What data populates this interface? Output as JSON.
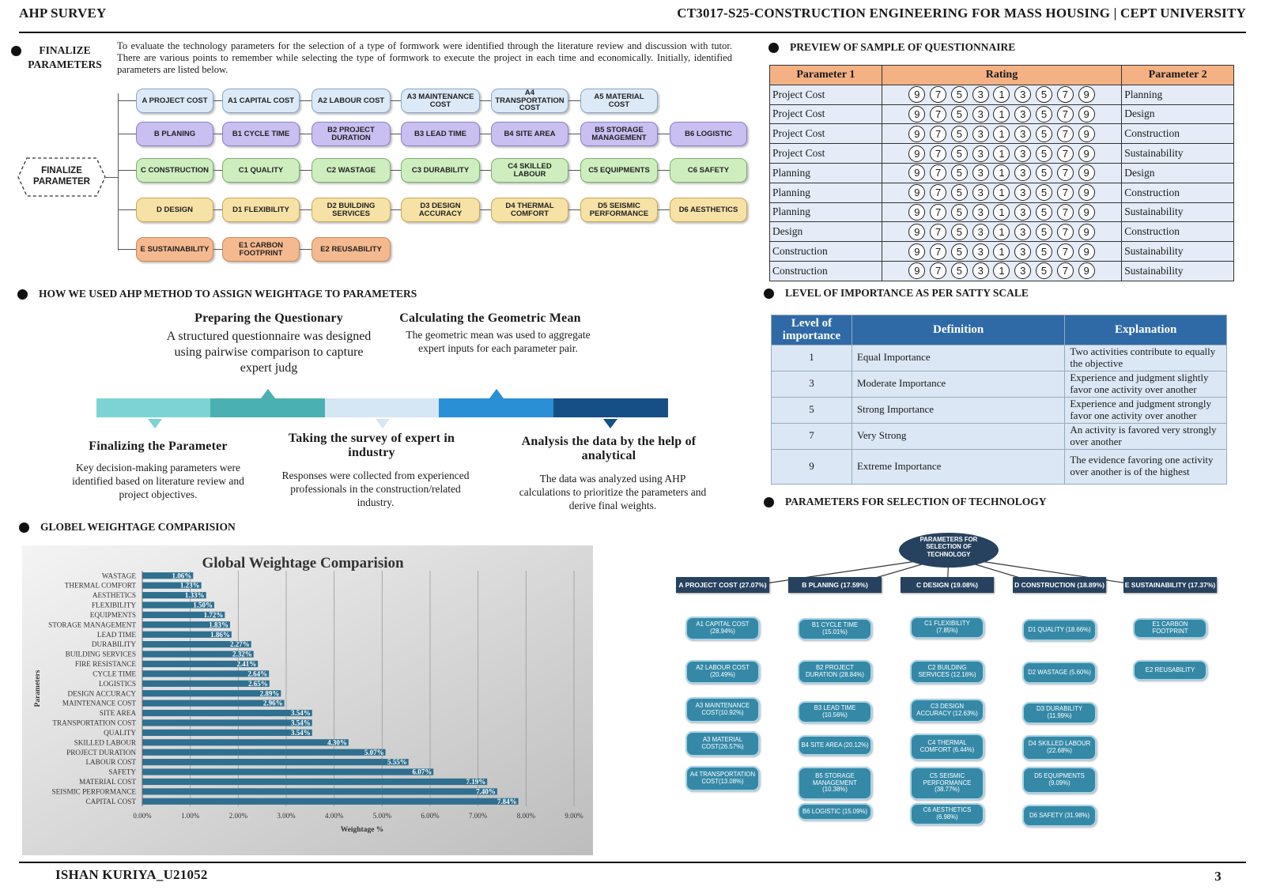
{
  "header": {
    "left": "AHP SURVEY",
    "right": "CT3017-S25-CONSTRUCTION ENGINEERING FOR MASS HOUSING | CEPT UNIVERSITY"
  },
  "footer": {
    "left": "ISHAN KURIYA_U21052",
    "right": "3"
  },
  "finalize": {
    "heading_line1": "FINALIZE",
    "heading_line2": "PARAMETERS",
    "intro": "To evaluate the technology parameters for the selection of a type of formwork were identified through the literature review and discussion with tutor. There are various points to remember while selecting the type of formwork to execute the project in each time and economically. Initially, identified parameters are listed below.",
    "root_line1": "FINALIZE",
    "root_line2": "PARAMETER",
    "rows": [
      {
        "cls": "cA",
        "items": [
          "A PROJECT COST",
          "A1 CAPITAL COST",
          "A2 LABOUR COST",
          "A3 MAINTENANCE COST",
          "A4 TRANSPORTATION COST",
          "A5 MATERIAL COST"
        ]
      },
      {
        "cls": "cB",
        "items": [
          "B PLANING",
          "B1 CYCLE TIME",
          "B2 PROJECT DURATION",
          "B3 LEAD TIME",
          "B4 SITE AREA",
          "B5 STORAGE MANAGEMENT",
          "B6 LOGISTIC"
        ]
      },
      {
        "cls": "cC",
        "items": [
          "C CONSTRUCTION",
          "C1 QUALITY",
          "C2 WASTAGE",
          "C3 DURABILITY",
          "C4 SKILLED LABOUR",
          "C5 EQUIPMENTS",
          "C6 SAFETY"
        ]
      },
      {
        "cls": "cD",
        "items": [
          "D DESIGN",
          "D1 FLEXIBILITY",
          "D2 BUILDING SERVICES",
          "D3 DESIGN ACCURACY",
          "D4 THERMAL COMFORT",
          "D5 SEISMIC PERFORMANCE",
          "D6 AESTHETICS"
        ]
      },
      {
        "cls": "cE",
        "items": [
          "E SUSTAINABILITY",
          "E1 CARBON FOOTPRINT",
          "E2 REUSABILITY"
        ]
      }
    ]
  },
  "questionnaire": {
    "heading": "PREVIEW OF SAMPLE OF QUESTIONNAIRE",
    "col1": "Parameter 1",
    "col2": "Rating",
    "col3": "Parameter 2",
    "scale": [
      "9",
      "7",
      "5",
      "3",
      "1",
      "3",
      "5",
      "7",
      "9"
    ],
    "rows": [
      [
        "Project Cost",
        "Planning"
      ],
      [
        "Project Cost",
        "Design"
      ],
      [
        "Project Cost",
        "Construction"
      ],
      [
        "Project Cost",
        "Sustainability"
      ],
      [
        "Planning",
        "Design"
      ],
      [
        "Planning",
        "Construction"
      ],
      [
        "Planning",
        "Sustainability"
      ],
      [
        "Design",
        "Construction"
      ],
      [
        "Construction",
        "Sustainability"
      ],
      [
        "Construction",
        "Sustainability"
      ]
    ]
  },
  "ahp": {
    "heading": "HOW WE USED AHP METHOD TO ASSIGN WEIGHTAGE TO PARAMETERS",
    "steps": [
      {
        "title": "Preparing the Questionary",
        "text": "A structured questionnaire was designed using pairwise comparison to capture expert judg"
      },
      {
        "title": "Calculating the Geometric Mean",
        "text": "The geometric mean was used to aggregate expert inputs for each parameter pair."
      },
      {
        "title": "Finalizing the Parameter",
        "text": "Key decision-making parameters were identified based on literature review and project objectives."
      },
      {
        "title": "Taking the survey of expert in industry",
        "text": "Responses were collected from experienced professionals in the construction/related industry."
      },
      {
        "title": "Analysis the data by the help of analytical",
        "text": "The data was analyzed using AHP calculations to prioritize the parameters and derive final weights."
      }
    ],
    "colors": [
      "#7dd3d3",
      "#4bb0b2",
      "#d5e6f5",
      "#2b8fd6",
      "#164f86"
    ]
  },
  "satty": {
    "heading": "LEVEL OF IMPORTANCE AS PER SATTY SCALE",
    "col1": "Level of importance",
    "col2": "Definition",
    "col3": "Explanation",
    "rows": [
      [
        "1",
        "Equal Importance",
        "Two activities contribute to equally the objective"
      ],
      [
        "3",
        "Moderate Importance",
        "Experience and judgment slightly favor one activity over another"
      ],
      [
        "5",
        "Strong Importance",
        "Experience and judgment strongly favor one activity over another"
      ],
      [
        "7",
        "Very Strong",
        "An activity is favored very strongly over another"
      ],
      [
        "9",
        "Extreme Importance",
        "The evidence favoring one activity over another is of the highest"
      ]
    ]
  },
  "global": {
    "heading": "GLOBEL WEIGHTAGE COMPARISION"
  },
  "chart_data": {
    "type": "bar",
    "orientation": "horizontal",
    "title": "Global Weightage Comparision",
    "xlabel": "Weightage %",
    "ylabel": "Parameters",
    "xlim": [
      0,
      9
    ],
    "xticks": [
      "0.00%",
      "1.00%",
      "2.00%",
      "3.00%",
      "4.00%",
      "5.00%",
      "6.00%",
      "7.00%",
      "8.00%",
      "9.00%"
    ],
    "bar_color": "#2f6f8f",
    "categories": [
      "WASTAGE",
      "THERMAL COMFORT",
      "AESTHETICS",
      "FLEXIBILITY",
      "EQUIPMENTS",
      "STORAGE MANAGEMENT",
      "LEAD TIME",
      "DURABILITY",
      "BUILDING SERVICES",
      "FIRE RESISTANCE",
      "CYCLE TIME",
      "LOGISTICS",
      "DESIGN ACCURACY",
      "MAINTENANCE COST",
      "SITE AREA",
      "TRANSPORTATION COST",
      "QUALITY",
      "SKILLED LABOUR",
      "PROJECT DURATION",
      "LABOUR COST",
      "SAFETY",
      "MATERIAL COST",
      "SEISMIC PERFORMANCE",
      "CAPITAL COST"
    ],
    "values": [
      1.06,
      1.23,
      1.33,
      1.5,
      1.72,
      1.83,
      1.86,
      2.27,
      2.32,
      2.41,
      2.64,
      2.65,
      2.89,
      2.96,
      3.54,
      3.54,
      3.54,
      4.3,
      5.07,
      5.55,
      6.07,
      7.19,
      7.4,
      7.84
    ],
    "labels": [
      "1.06%",
      "1.23%",
      "1.33%",
      "1.50%",
      "1.72%",
      "1.83%",
      "1.86%",
      "2.27%",
      "2.32%",
      "2.41%",
      "2.64%",
      "2.65%",
      "2.89%",
      "2.96%",
      "3.54%",
      "3.54%",
      "3.54%",
      "4.30%",
      "5.07%",
      "5.55%",
      "6.07%",
      "7.19%",
      "7.40%",
      "7.84%"
    ]
  },
  "tree": {
    "heading": "PARAMETERS FOR SELECTION OF TECHNOLOGY",
    "root": "PARAMETERS FOR SELECTION OF TECHNOLOGY",
    "columns": [
      {
        "title": "A PROJECT COST (27.07%)",
        "items": [
          "A1 CAPITAL COST (28.94%)",
          "A2 LABOUR COST (20.49%)",
          "A3 MAINTENANCE COST(10.92%)",
          "A3 MATERIAL COST(26.57%)",
          "A4 TRANSPORTATION COST(13.08%)"
        ]
      },
      {
        "title": "B PLANING (17.59%)",
        "items": [
          "B1 CYCLE TIME (15.01%)",
          "B2 PROJECT DURATION (28.84%)",
          "B3 LEAD TIME (10.56%)",
          "B4 SITE AREA (20.12%)",
          "B5 STORAGE MANAGEMENT (10.38%)",
          "B6 LOGISTIC (15.09%)"
        ]
      },
      {
        "title": "C DESIGN (19.08%)",
        "items": [
          "C1 FLEXIBILITY (7.85%)",
          "C2 BUILDING SERVICES (12.16%)",
          "C3 DESIGN ACCURACY (12.63%)",
          "C4 THERMAL COMFORT (6.44%)",
          "C5 SEISMIC PERFORMANCE (38.77%)",
          "C6 AESTHETICS (6.98%)"
        ]
      },
      {
        "title": "D CONSTRUCTION (18.89%)",
        "items": [
          "D1 QUALITY (18.66%)",
          "D2 WASTAGE (5.60%)",
          "D3 DURABILITY (11.99%)",
          "D4 SKILLED LABOUR (22.68%)",
          "D5 EQUIPMENTS (9.09%)",
          "D6 SAFETY (31.98%)"
        ]
      },
      {
        "title": "E SUSTAINABILITY (17.37%)",
        "items": [
          "E1 CARBON FOOTPRINT",
          "E2 REUSABILITY"
        ]
      }
    ]
  }
}
